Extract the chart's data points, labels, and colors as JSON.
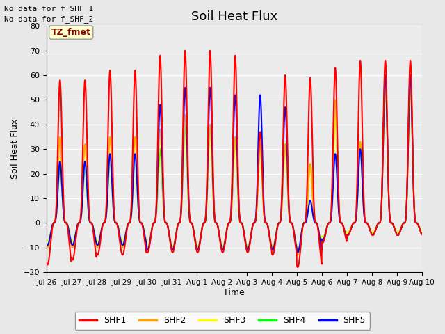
{
  "title": "Soil Heat Flux",
  "xlabel": "Time",
  "ylabel": "Soil Heat Flux",
  "ylim": [
    -20,
    80
  ],
  "yticks": [
    -20,
    -10,
    0,
    10,
    20,
    30,
    40,
    50,
    60,
    70,
    80
  ],
  "fig_bg_color": "#e8e8e8",
  "plot_bg_color": "#ebebeb",
  "text_no_data": [
    "No data for f_SHF_1",
    "No data for f_SHF_2"
  ],
  "tz_label": "TZ_fmet",
  "tz_label_color": "#880000",
  "tz_box_facecolor": "#ffffcc",
  "tz_box_edgecolor": "#999999",
  "date_labels": [
    "Jul 26",
    "Jul 27",
    "Jul 28",
    "Jul 29",
    "Jul 30",
    "Jul 31",
    "Aug 1",
    "Aug 2",
    "Aug 3",
    "Aug 4",
    "Aug 5",
    "Aug 6",
    "Aug 7",
    "Aug 8",
    "Aug 9",
    "Aug 10"
  ],
  "legend_entries": [
    "SHF1",
    "SHF2",
    "SHF3",
    "SHF4",
    "SHF5"
  ],
  "legend_colors": [
    "red",
    "orange",
    "yellow",
    "lime",
    "blue"
  ],
  "line_width": 1.5,
  "num_days": 15,
  "peaks_shf1": [
    58,
    58,
    62,
    62,
    68,
    70,
    70,
    68,
    37,
    60,
    59,
    63,
    66,
    66,
    66
  ],
  "peaks_shf2": [
    35,
    32,
    35,
    35,
    38,
    44,
    40,
    35,
    32,
    32,
    24,
    50,
    33,
    60,
    60
  ],
  "peaks_shf3": [
    26,
    24,
    26,
    26,
    35,
    44,
    40,
    35,
    32,
    33,
    24,
    44,
    30,
    57,
    57
  ],
  "peaks_shf4": [
    23,
    22,
    25,
    25,
    30,
    40,
    40,
    35,
    32,
    33,
    24,
    44,
    30,
    57,
    57
  ],
  "peaks_shf5": [
    25,
    25,
    28,
    28,
    48,
    55,
    55,
    52,
    52,
    47,
    9,
    28,
    30,
    60,
    60
  ],
  "troughs_shf1": [
    -17,
    -15,
    -13,
    -13,
    -12,
    -12,
    -12,
    -12,
    -12,
    -13,
    -18,
    -8,
    -5,
    -5
  ],
  "troughs_shf2": [
    -10,
    -10,
    -10,
    -10,
    -10,
    -10,
    -10,
    -10,
    -10,
    -10,
    -13,
    -7,
    -5,
    -5
  ],
  "troughs_shf3": [
    -8,
    -8,
    -8,
    -8,
    -10,
    -10,
    -10,
    -10,
    -10,
    -10,
    -12,
    -6,
    -4,
    -4
  ],
  "troughs_shf4": [
    -8,
    -8,
    -8,
    -8,
    -10,
    -10,
    -10,
    -10,
    -10,
    -10,
    -12,
    -6,
    -4,
    -4
  ],
  "troughs_shf5": [
    -9,
    -9,
    -9,
    -9,
    -11,
    -11,
    -11,
    -11,
    -11,
    -11,
    -12,
    -7,
    -5,
    -5
  ],
  "peak_sharpness": 4.0,
  "trough_sharpness": 2.0,
  "peak_hour": 13.0,
  "trough_hour": 1.0
}
